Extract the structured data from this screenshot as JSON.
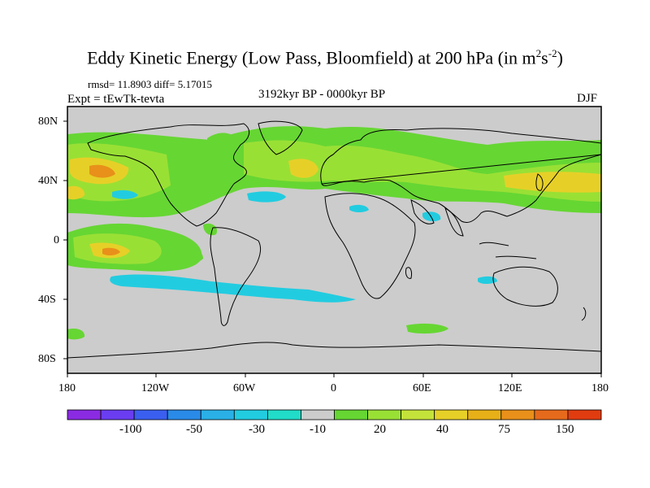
{
  "title": {
    "main": "Eddy Kinetic Energy (Low Pass, Bloomfield) at 200 hPa (in m",
    "exp1": "2",
    "mid": "s",
    "exp2": "-2",
    "close": ")"
  },
  "stats": {
    "text": "rmsd= 11.8903 diff= 5.17015"
  },
  "labels": {
    "expt": "Expt = tEwTk-tevta",
    "period": "3192kyr BP - 0000kyr BP",
    "season": "DJF"
  },
  "lat_labels": [
    "80N",
    "40N",
    "0",
    "40S",
    "80S"
  ],
  "lon_labels": [
    "180",
    "120W",
    "60W",
    "0",
    "60E",
    "120E",
    "180"
  ],
  "colorbar": {
    "labels": [
      "-100",
      "-50",
      "-30",
      "-10",
      "20",
      "40",
      "75",
      "150"
    ],
    "colors": [
      "#8a2be2",
      "#6a3df0",
      "#3a5ff0",
      "#2a8ae8",
      "#2ab0e6",
      "#22cce0",
      "#20dcc8",
      "#cccccc",
      "#66d633",
      "#99e035",
      "#c4e33a",
      "#e6d028",
      "#e8b018",
      "#e8901a",
      "#e66a1c",
      "#e03c10"
    ]
  },
  "colors": {
    "ocean_bg": "#cccccc",
    "positive_low": "#66d633",
    "positive_mid": "#99e035",
    "positive_high": "#e6d028",
    "positive_peak": "#e8901a",
    "negative": "#22cce0"
  }
}
